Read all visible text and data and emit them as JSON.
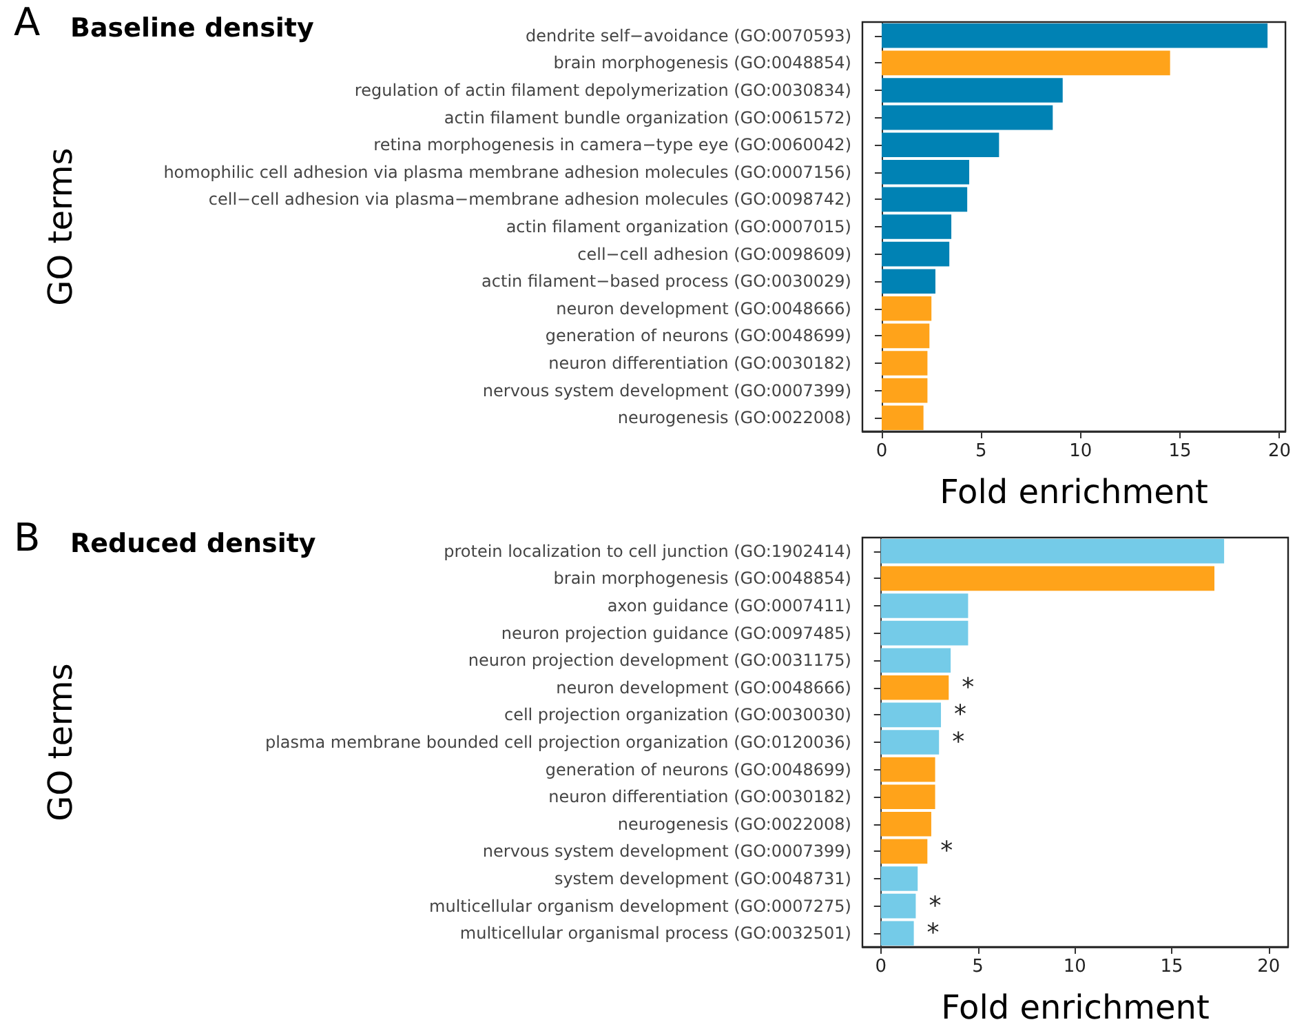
{
  "chart_data": [
    {
      "type": "bar",
      "orientation": "horizontal",
      "title": "Baseline density",
      "xlabel": "Fold enrichment",
      "ylabel": "GO terms",
      "annotations": [
        "A"
      ],
      "categories": [
        "dendrite self−avoidance (GO:0070593)",
        "brain morphogenesis (GO:0048854)",
        "regulation of actin filament depolymerization (GO:0030834)",
        "actin filament bundle organization (GO:0061572)",
        "retina morphogenesis in camera−type eye (GO:0060042)",
        "homophilic cell adhesion via plasma membrane adhesion molecules (GO:0007156)",
        "cell−cell adhesion via plasma−membrane adhesion molecules (GO:0098742)",
        "actin filament organization (GO:0007015)",
        "cell−cell adhesion (GO:0098609)",
        "actin filament−based process (GO:0030029)",
        "neuron development (GO:0048666)",
        "generation of neurons (GO:0048699)",
        "neuron differentiation (GO:0030182)",
        "nervous system development (GO:0007399)",
        "neurogenesis (GO:0022008)"
      ],
      "values": [
        19.4,
        14.5,
        9.1,
        8.6,
        5.9,
        4.4,
        4.3,
        3.5,
        3.4,
        2.7,
        2.5,
        2.4,
        2.3,
        2.3,
        2.1
      ],
      "colors": [
        "#0082b4",
        "#ffa31a",
        "#0082b4",
        "#0082b4",
        "#0082b4",
        "#0082b4",
        "#0082b4",
        "#0082b4",
        "#0082b4",
        "#0082b4",
        "#ffa31a",
        "#ffa31a",
        "#ffa31a",
        "#ffa31a",
        "#ffa31a"
      ],
      "xlim": [
        -0.97,
        20.3
      ],
      "xticks": [
        0,
        5,
        10,
        15,
        20
      ]
    },
    {
      "type": "bar",
      "orientation": "horizontal",
      "title": "Reduced density",
      "xlabel": "Fold enrichment",
      "ylabel": "GO terms",
      "annotations": [
        "B",
        {
          "text": "*",
          "x": 3.5,
          "y": "neuron development (GO:0048666)"
        },
        {
          "text": "*",
          "x": 3.1,
          "y": "cell projection organization (GO:0030030)"
        },
        {
          "text": "*",
          "x": 3.0,
          "y": "plasma membrane bounded cell projection organization (GO:0120036)"
        },
        {
          "text": "*",
          "x": 2.4,
          "y": "nervous system development (GO:0007399)"
        },
        {
          "text": "*",
          "x": 1.8,
          "y": "multicellular organism development (GO:0007275)"
        },
        {
          "text": "*",
          "x": 1.7,
          "y": "multicellular organismal process (GO:0032501)"
        }
      ],
      "categories": [
        "protein localization to cell junction (GO:1902414)",
        "brain morphogenesis (GO:0048854)",
        "axon guidance (GO:0007411)",
        "neuron projection guidance (GO:0097485)",
        "neuron projection development (GO:0031175)",
        "neuron development (GO:0048666)",
        "cell projection organization (GO:0030030)",
        "plasma membrane bounded cell projection organization (GO:0120036)",
        "generation of neurons (GO:0048699)",
        "neuron differentiation (GO:0030182)",
        "neurogenesis (GO:0022008)",
        "nervous system development (GO:0007399)",
        "system development (GO:0048731)",
        "multicellular organism development (GO:0007275)",
        "multicellular organismal process (GO:0032501)"
      ],
      "values": [
        17.7,
        17.2,
        4.5,
        4.5,
        3.6,
        3.5,
        3.1,
        3.0,
        2.8,
        2.8,
        2.6,
        2.4,
        1.9,
        1.8,
        1.7
      ],
      "colors": [
        "#74cbe8",
        "#ffa31a",
        "#74cbe8",
        "#74cbe8",
        "#74cbe8",
        "#ffa31a",
        "#74cbe8",
        "#74cbe8",
        "#ffa31a",
        "#ffa31a",
        "#ffa31a",
        "#ffa31a",
        "#74cbe8",
        "#74cbe8",
        "#74cbe8"
      ],
      "xlim": [
        -0.95,
        21.0
      ],
      "xticks": [
        0,
        5,
        10,
        15,
        20
      ]
    }
  ]
}
